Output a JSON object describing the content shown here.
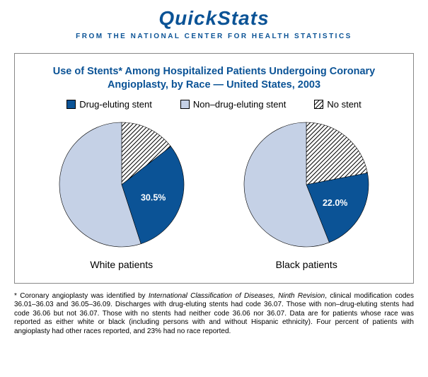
{
  "header": {
    "title": "QuickStats",
    "subtitle": "FROM THE NATIONAL CENTER FOR HEALTH STATISTICS",
    "title_color": "#0b5396",
    "subtitle_color": "#0b5396"
  },
  "chart": {
    "title": "Use of Stents* Among Hospitalized Patients Undergoing Coronary Angioplasty, by Race — United States, 2003",
    "title_color": "#0b5396",
    "type": "pie",
    "pie_radius": 88,
    "legend": [
      {
        "label": "Drug-eluting stent",
        "fill": "#0b5396",
        "pattern": "solid"
      },
      {
        "label": "Non–drug-eluting stent",
        "fill": "#c5d1e6",
        "pattern": "solid"
      },
      {
        "label": "No stent",
        "fill": "#ffffff",
        "pattern": "hatch"
      }
    ],
    "pies": [
      {
        "caption": "White patients",
        "slices": [
          {
            "key": "drug_eluting",
            "value": 30.5,
            "color": "#0b5396",
            "pattern": "solid",
            "data_label": "30.5%"
          },
          {
            "key": "non_drug_eluting",
            "value": 55.0,
            "color": "#c5d1e6",
            "pattern": "solid",
            "data_label": ""
          },
          {
            "key": "no_stent",
            "value": 14.5,
            "color": "#ffffff",
            "pattern": "hatch",
            "data_label": ""
          }
        ]
      },
      {
        "caption": "Black patients",
        "slices": [
          {
            "key": "drug_eluting",
            "value": 22.0,
            "color": "#0b5396",
            "pattern": "solid",
            "data_label": "22.0%"
          },
          {
            "key": "non_drug_eluting",
            "value": 56.0,
            "color": "#c5d1e6",
            "pattern": "solid",
            "data_label": ""
          },
          {
            "key": "no_stent",
            "value": 22.0,
            "color": "#ffffff",
            "pattern": "hatch",
            "data_label": ""
          }
        ]
      }
    ]
  },
  "footnote": {
    "prefix": "* Coronary angioplasty was identified by ",
    "ital": "International Classification of Diseases, Ninth Revision",
    "rest": ", clinical modification codes 36.01–36.03 and 36.05–36.09. Discharges with drug-eluting stents had code 36.07. Those with non–drug-eluting stents had code 36.06 but not 36.07. Those with no stents had neither code 36.06 nor 36.07. Data are for patients whose race was reported as either white or black (including persons with and without Hispanic ethnicity). Four percent of patients with angioplasty had other races reported, and 23% had no race reported."
  }
}
